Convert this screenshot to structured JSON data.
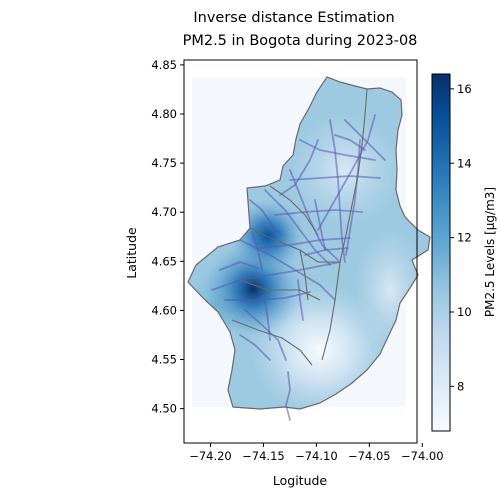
{
  "figure": {
    "title_line1": "Inverse distance Estimation",
    "title_line2": "PM2.5 in Bogota during 2023-08"
  },
  "axes": {
    "xlabel": "Logitude",
    "ylabel": "Latitude",
    "xlim": [
      -74.225,
      -74.005
    ],
    "ylim": [
      4.465,
      4.855
    ],
    "x_ticks": [
      {
        "value": -74.2,
        "label": "−74.20"
      },
      {
        "value": -74.15,
        "label": "−74.15"
      },
      {
        "value": -74.1,
        "label": "−74.10"
      },
      {
        "value": -74.05,
        "label": "−74.05"
      },
      {
        "value": -74.0,
        "label": "−74.00"
      }
    ],
    "y_ticks": [
      {
        "value": 4.5,
        "label": "4.50"
      },
      {
        "value": 4.55,
        "label": "4.55"
      },
      {
        "value": 4.6,
        "label": "4.60"
      },
      {
        "value": 4.65,
        "label": "4.65"
      },
      {
        "value": 4.7,
        "label": "4.70"
      },
      {
        "value": 4.75,
        "label": "4.75"
      },
      {
        "value": 4.8,
        "label": "4.80"
      },
      {
        "value": 4.85,
        "label": "4.85"
      }
    ]
  },
  "colorbar": {
    "label": "PM2.5 Levels [μg/m3]",
    "min": 6.8,
    "max": 16.4,
    "ticks": [
      {
        "value": 8,
        "label": "8"
      },
      {
        "value": 10,
        "label": "10"
      },
      {
        "value": 12,
        "label": "12"
      },
      {
        "value": 14,
        "label": "14"
      },
      {
        "value": 16,
        "label": "16"
      }
    ],
    "colors": [
      "#f7fbff",
      "#deebf7",
      "#c6dbef",
      "#9ecae1",
      "#6baed6",
      "#4292c6",
      "#2171b5",
      "#08519c",
      "#08306b"
    ]
  },
  "chart_data": {
    "type": "heatmap",
    "method": "inverse distance weighting",
    "title": "Inverse distance Estimation PM2.5 in Bogota during 2023-08",
    "xlabel": "Logitude",
    "ylabel": "Latitude",
    "grid": false,
    "raster_extent": {
      "lon": [
        -74.205,
        -74.01
      ],
      "lat": [
        4.5,
        4.835
      ]
    },
    "hotspots": [
      {
        "lon": -74.155,
        "lat": 4.622,
        "pm25": 16.4
      },
      {
        "lon": -74.137,
        "lat": 4.675,
        "pm25": 15.0
      }
    ],
    "coldspots": [
      {
        "lon": -74.075,
        "lat": 4.57,
        "pm25": 7.0
      },
      {
        "lon": -74.09,
        "lat": 4.735,
        "pm25": 9.0
      }
    ],
    "background_value": 11.0,
    "boundary_color": "#696969",
    "roads_color": "#5a55b4"
  }
}
